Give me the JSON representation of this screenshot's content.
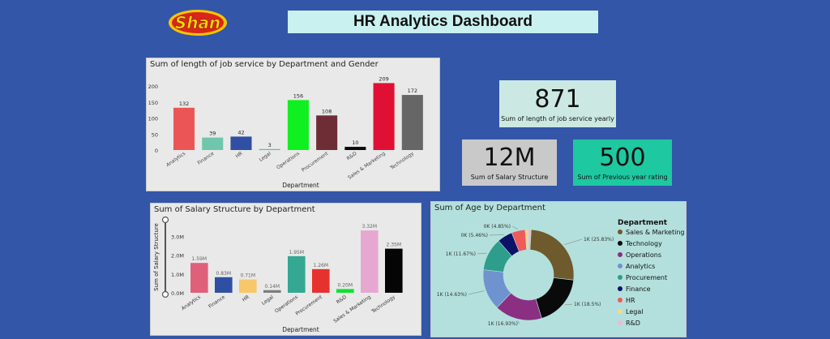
{
  "logo": {
    "text": "Shan"
  },
  "header": {
    "title": "HR Analytics Dashboard"
  },
  "kpis": [
    {
      "value": "871",
      "label": "Sum of length of job service yearly",
      "bg": "#cbe9e2"
    },
    {
      "value": "12M",
      "label": "Sum of Salary Structure",
      "bg": "#c9c9c9"
    },
    {
      "value": "500",
      "label": "Sum of Previous year rating",
      "bg": "#1ec8a0"
    }
  ],
  "colors": {
    "background": "#3356a8",
    "analytics": "#ec5555",
    "finance": "#6fc7ab",
    "hr": "#2f4fa3",
    "legal": "#56c1a0",
    "operations": "#10f020",
    "procurement": "#7a2b35",
    "rnd": "#0a0a0a",
    "sales_marketing": "#e01035",
    "technology": "#6b6b6b"
  },
  "chart_data": [
    {
      "type": "bar",
      "title": "Sum of length of job service by Department and Gender",
      "xlabel": "Department",
      "ylabel": "",
      "ylim": [
        0,
        200
      ],
      "yticks": [
        "0",
        "50",
        "100",
        "150",
        "200"
      ],
      "categories": [
        "Analytics",
        "Finance",
        "HR",
        "Legal",
        "Operations",
        "Procurement",
        "R&D",
        "Sales & Marketing",
        "Technology"
      ],
      "values": [
        132,
        39,
        42,
        3,
        156,
        108,
        10,
        209,
        172
      ],
      "labels": [
        "132",
        "39",
        "42",
        "3",
        "156",
        "108",
        "10",
        "209",
        "172"
      ],
      "colors": [
        "#ec5555",
        "#6fc7ab",
        "#2f4fa3",
        "#56c1a0",
        "#10f020",
        "#6e2d35",
        "#0a0a0a",
        "#e01035",
        "#666666"
      ]
    },
    {
      "type": "bar",
      "title": "Sum of Salary Structure by Department",
      "xlabel": "Department",
      "ylabel": "Sum of Salary Structure",
      "ylim": [
        0,
        3500000
      ],
      "yticks": [
        "0.0M",
        "1.0M",
        "2.0M",
        "3.0M"
      ],
      "categories": [
        "Analytics",
        "Finance",
        "HR",
        "Legal",
        "Operations",
        "Procurement",
        "R&D",
        "Sales & Marketing",
        "Technology"
      ],
      "values": [
        1590000,
        830000,
        710000,
        140000,
        1950000,
        1260000,
        200000,
        3320000,
        2350000
      ],
      "labels": [
        "1.59M",
        "0.83M",
        "0.71M",
        "0.14M",
        "1.95M",
        "1.26M",
        "0.20M",
        "3.32M",
        "2.35M"
      ],
      "colors": [
        "#e0607a",
        "#2f4fa3",
        "#f7c76a",
        "#7d7d7d",
        "#34a892",
        "#e5322f",
        "#10e030",
        "#e6a8d0",
        "#050505"
      ]
    },
    {
      "type": "pie",
      "title": "Sum of Age by Department",
      "legend_title": "Department",
      "legend_position": "right",
      "categories": [
        "Sales & Marketing",
        "Technology",
        "Operations",
        "Analytics",
        "Procurement",
        "Finance",
        "HR",
        "Legal",
        "R&D"
      ],
      "values": [
        25.83,
        18.5,
        16.93,
        14.63,
        11.67,
        5.46,
        4.85,
        1.2,
        0.93
      ],
      "labels": [
        "1K (25.83%)",
        "1K (18.5%)",
        "1K (16.93%)",
        "1K (14.63%)",
        "1K (11.67%)",
        "0K (5.46%)",
        "0K (4.85%)",
        "",
        ""
      ],
      "colors": [
        "#6e5a2c",
        "#0a0a0a",
        "#8a2f82",
        "#6f93cf",
        "#2e9d8c",
        "#0c1268",
        "#ef5a5a",
        "#f6d78c",
        "#f0b8d8"
      ]
    }
  ]
}
